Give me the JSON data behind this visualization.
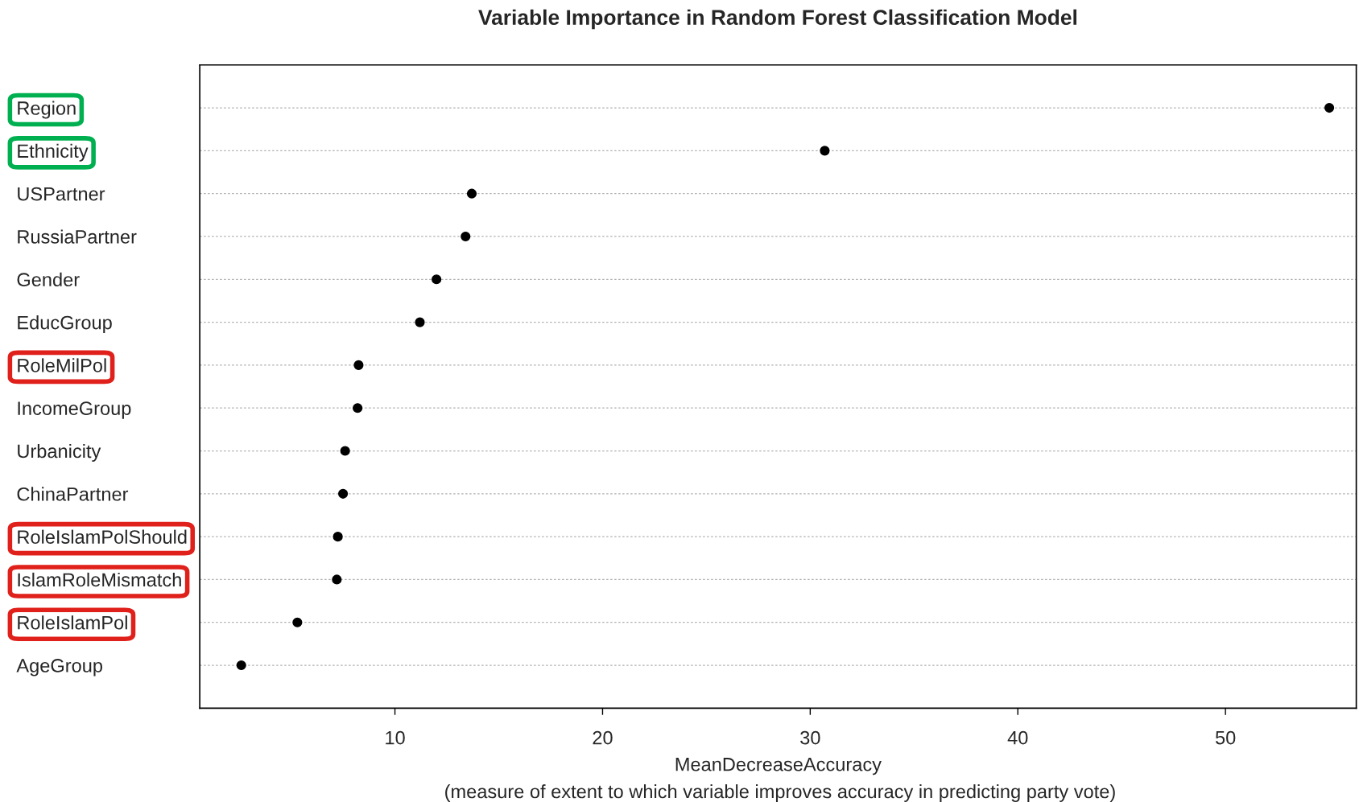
{
  "chart_data": {
    "type": "scatter",
    "orientation": "horizontal",
    "title": "Variable Importance in Random Forest Classification Model",
    "xlabel": "MeanDecreaseAccuracy",
    "annotations": [
      "(measure of extent to which variable improves accuracy in predicting party vote)"
    ],
    "categories": [
      "Region",
      "Ethnicity",
      "USPartner",
      "RussiaPartner",
      "Gender",
      "EducGroup",
      "RoleMilPol",
      "IncomeGroup",
      "Urbanicity",
      "ChinaPartner",
      "RoleIslamPolShould",
      "IslamRoleMismatch",
      "RoleIslamPol",
      "AgeGroup"
    ],
    "series": [
      {
        "color": "#000000",
        "values": [
          55.0,
          30.7,
          13.7,
          13.4,
          12.0,
          11.2,
          8.25,
          8.2,
          7.6,
          7.5,
          7.25,
          7.2,
          5.3,
          2.6
        ]
      }
    ],
    "xlim": [
      0.6,
      56.3
    ],
    "xticks": [
      10,
      20,
      30,
      40,
      50
    ],
    "grid": "y",
    "marker": "circle"
  }
}
